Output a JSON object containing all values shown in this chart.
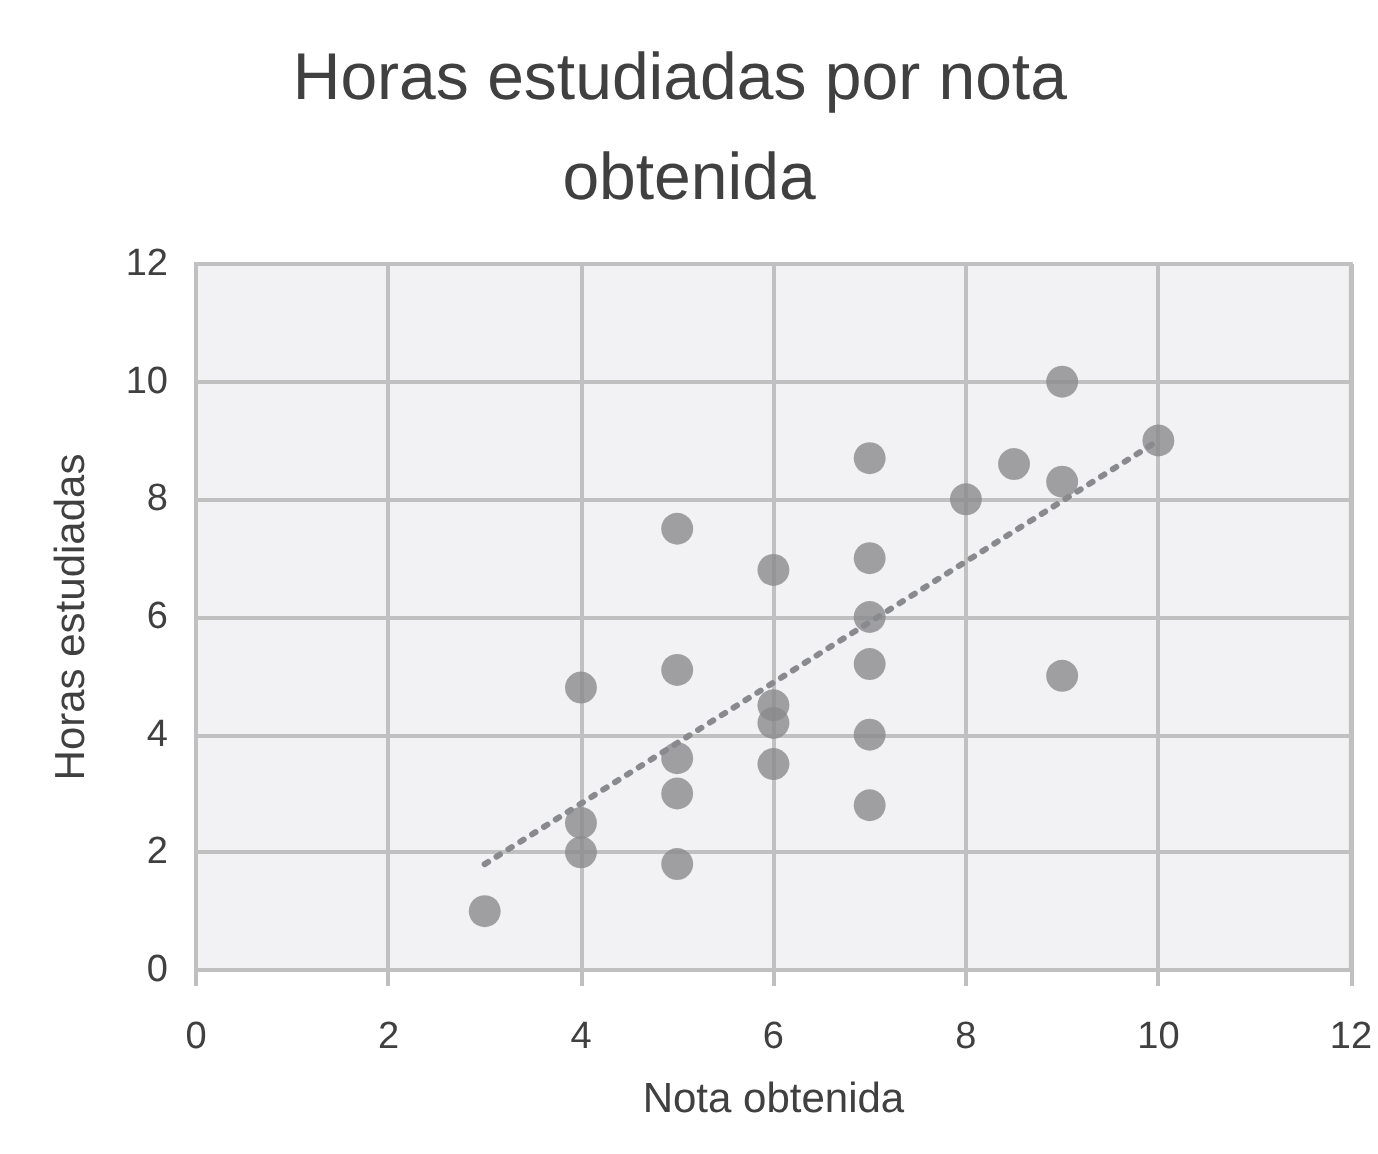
{
  "chart_data": {
    "type": "scatter",
    "title": "Horas estudiadas por nota obtenida",
    "xlabel": "Nota obtenida",
    "ylabel": "Horas estudiadas",
    "series": [
      {
        "color": "#898a8d",
        "x": [
          3,
          4,
          4,
          4,
          5,
          5,
          5,
          5,
          5,
          6,
          6,
          6,
          6,
          7,
          7,
          7,
          7,
          7,
          7,
          8,
          8.5,
          9,
          9,
          9,
          10
        ],
        "values": [
          1.0,
          4.8,
          2.5,
          2.0,
          7.5,
          5.1,
          3.6,
          3.0,
          1.8,
          6.8,
          4.5,
          4.2,
          3.5,
          8.7,
          7.0,
          6.0,
          5.2,
          4.0,
          2.8,
          8.0,
          8.6,
          10.0,
          8.3,
          5.0,
          9.0
        ]
      },
      {
        "type": "line",
        "color": "#898a8d",
        "line_style": "dotted",
        "marker": "none",
        "x": [
          3,
          10
        ],
        "values": [
          1.8,
          9.0
        ]
      }
    ],
    "xlim": [
      0,
      12
    ],
    "xticks": [
      0,
      2,
      4,
      6,
      8,
      10,
      12
    ],
    "ylim": [
      0,
      12
    ],
    "yticks": [
      0,
      2,
      4,
      6,
      8,
      10,
      12
    ],
    "grid": true,
    "marker": "circle"
  }
}
